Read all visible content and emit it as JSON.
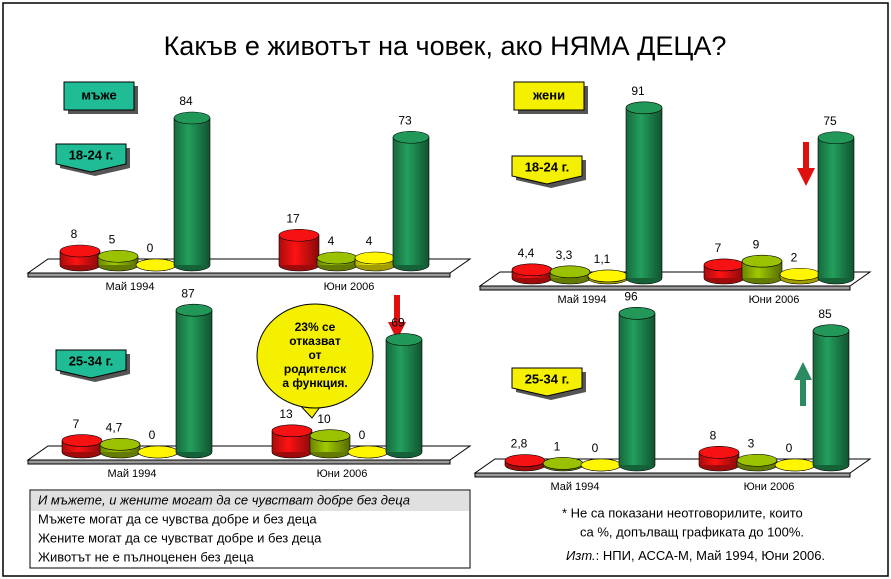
{
  "title": "Какъв е животът на човек, ако НЯМА ДЕЦА?",
  "groups": {
    "men": "мъже",
    "women": "жени"
  },
  "legend": [
    "И мъжете, и жените могат да се чувстват добре без деца",
    "Мъжете могат да се чувства добре и без деца",
    "Жените могат да се чувстват добре и без деца",
    "Животът не е пълноценен без деца"
  ],
  "annotation": {
    "highlight": "23%",
    "lines": [
      "се",
      "отказват",
      "от",
      "родителск",
      "а функция."
    ]
  },
  "footnote": [
    "* Не са показани неотговорилите, които",
    "са %, допълващ графиката до 100%."
  ],
  "source": [
    "Изт.",
    ": НПИ, АССА-М, Май 1994, Юни 2006."
  ],
  "chart_data": [
    {
      "type": "bar",
      "subtitle": "18-24 г.",
      "categories": [
        "Май 1994",
        "Юни 2006"
      ],
      "ylim": [
        0,
        100
      ],
      "series": [
        {
          "color": "#e01010",
          "values": [
            8,
            17
          ]
        },
        {
          "color": "#8cb000",
          "values": [
            5,
            4
          ]
        },
        {
          "color": "#e8e000",
          "values": [
            0,
            4
          ]
        },
        {
          "color": "#1e8a50",
          "values": [
            84,
            73
          ]
        }
      ]
    },
    {
      "type": "bar",
      "subtitle": "25-34 г.",
      "categories": [
        "Май 1994",
        "Юни 2006"
      ],
      "ylim": [
        0,
        100
      ],
      "series": [
        {
          "color": "#e01010",
          "values": [
            7,
            13
          ]
        },
        {
          "color": "#8cb000",
          "values": [
            4.7,
            10
          ],
          "value_labels": [
            "4,7",
            "10"
          ]
        },
        {
          "color": "#e8e000",
          "values": [
            0,
            0
          ]
        },
        {
          "color": "#1e8a50",
          "values": [
            87,
            69
          ]
        }
      ]
    },
    {
      "type": "bar",
      "subtitle": "18-24 г.",
      "categories": [
        "Май 1994",
        "Юни 2006"
      ],
      "ylim": [
        0,
        100
      ],
      "series": [
        {
          "color": "#e01010",
          "values": [
            4.4,
            7
          ],
          "value_labels": [
            "4,4",
            "7"
          ]
        },
        {
          "color": "#8cb000",
          "values": [
            3.3,
            9
          ],
          "value_labels": [
            "3,3",
            "9"
          ]
        },
        {
          "color": "#e8e000",
          "values": [
            1.1,
            2
          ],
          "value_labels": [
            "1,1",
            "2"
          ]
        },
        {
          "color": "#1e8a50",
          "values": [
            91,
            75
          ]
        }
      ]
    },
    {
      "type": "bar",
      "subtitle": "25-34 г.",
      "categories": [
        "Май 1994",
        "Юни 2006"
      ],
      "ylim": [
        0,
        100
      ],
      "series": [
        {
          "color": "#e01010",
          "values": [
            2.8,
            8
          ],
          "value_labels": [
            "2,8",
            "8"
          ]
        },
        {
          "color": "#8cb000",
          "values": [
            1,
            3
          ]
        },
        {
          "color": "#e8e000",
          "values": [
            0,
            0
          ]
        },
        {
          "color": "#1e8a50",
          "values": [
            96,
            85
          ]
        }
      ]
    }
  ]
}
